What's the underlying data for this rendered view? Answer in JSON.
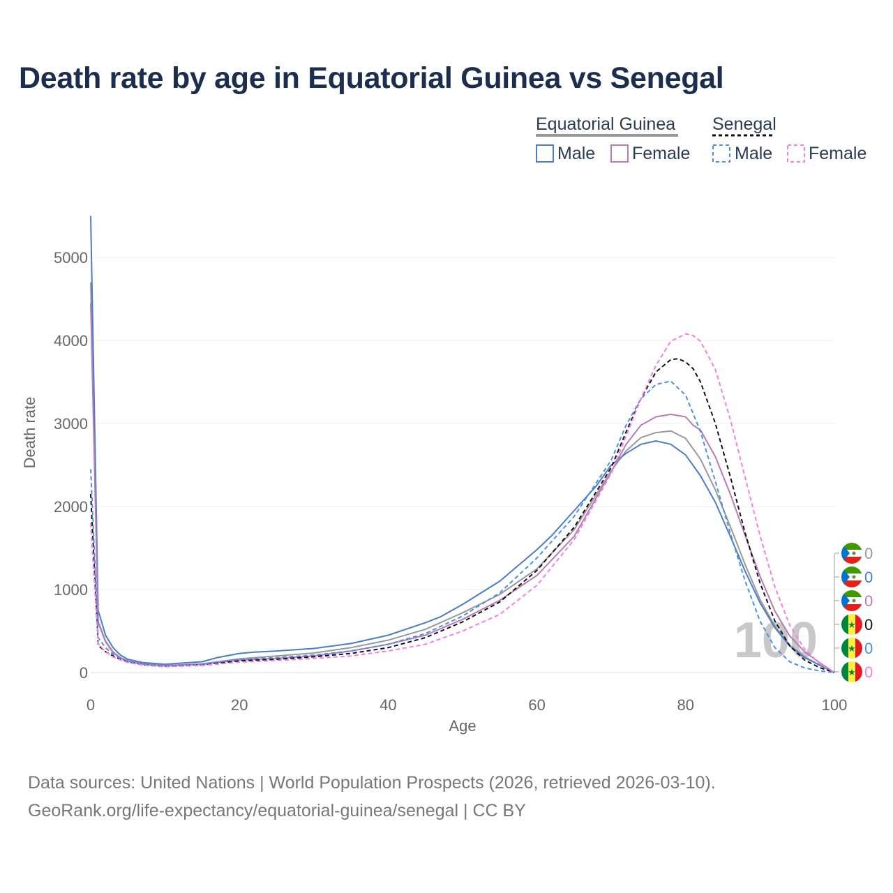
{
  "title": "Death rate by age in Equatorial Guinea vs Senegal",
  "sources": {
    "line1": "Data sources: United Nations | World Population Prospects (2026, retrieved 2026-03-10).",
    "line2": "GeoRank.org/life-expectancy/equatorial-guinea/senegal | CC BY"
  },
  "legend": {
    "groups": [
      {
        "country": "Equatorial Guinea",
        "male": "Male",
        "female": "Female"
      },
      {
        "country": "Senegal",
        "male": "Male",
        "female": "Female"
      }
    ]
  },
  "watermark_age": "100",
  "end_labels": [
    {
      "flag": "equatorial-guinea",
      "value": "0",
      "color": "#999999"
    },
    {
      "flag": "equatorial-guinea",
      "value": "0",
      "color": "#4a7cc9"
    },
    {
      "flag": "equatorial-guinea",
      "value": "0",
      "color": "#b77bb8"
    },
    {
      "flag": "senegal",
      "value": "0",
      "color": "#111111"
    },
    {
      "flag": "senegal",
      "value": "0",
      "color": "#4a90e2"
    },
    {
      "flag": "senegal",
      "value": "0",
      "color": "#f47fe0"
    }
  ],
  "chart_data": {
    "type": "line",
    "title": "Death rate by age in Equatorial Guinea vs Senegal",
    "xlabel": "Age",
    "ylabel": "Death rate",
    "xlim": [
      0,
      100
    ],
    "ylim": [
      0,
      5000
    ],
    "x_ticks": [
      0,
      20,
      40,
      60,
      80,
      100
    ],
    "y_ticks": [
      0,
      1000,
      2000,
      3000,
      4000,
      5000
    ],
    "series": [
      {
        "name": "Equatorial Guinea (total)",
        "color": "#999999",
        "dash": "solid",
        "x": [
          0,
          1,
          2,
          3,
          4,
          5,
          7,
          10,
          15,
          20,
          25,
          30,
          35,
          40,
          45,
          50,
          55,
          60,
          65,
          70,
          72,
          74,
          76,
          78,
          80,
          82,
          84,
          86,
          88,
          90,
          92,
          94,
          96,
          98,
          100
        ],
        "y": [
          4700,
          620,
          380,
          250,
          180,
          140,
          105,
          85,
          105,
          165,
          200,
          235,
          300,
          390,
          520,
          720,
          940,
          1250,
          1720,
          2430,
          2670,
          2830,
          2890,
          2910,
          2820,
          2570,
          2200,
          1760,
          1300,
          880,
          560,
          330,
          190,
          90,
          0
        ]
      },
      {
        "name": "Equatorial Guinea Male",
        "color": "#4a7cc9",
        "dash": "solid",
        "x": [
          0,
          1,
          2,
          3,
          4,
          5,
          7,
          10,
          15,
          17,
          20,
          22,
          25,
          30,
          35,
          40,
          45,
          47,
          50,
          55,
          60,
          62,
          65,
          68,
          70,
          72,
          74,
          76,
          78,
          80,
          82,
          84,
          86,
          88,
          90,
          92,
          94,
          96,
          98,
          100
        ],
        "y": [
          5500,
          750,
          450,
          300,
          210,
          160,
          120,
          100,
          130,
          180,
          230,
          245,
          260,
          290,
          350,
          450,
          600,
          670,
          820,
          1100,
          1480,
          1650,
          1950,
          2250,
          2500,
          2640,
          2750,
          2790,
          2750,
          2620,
          2370,
          2050,
          1640,
          1220,
          840,
          540,
          320,
          180,
          90,
          0
        ]
      },
      {
        "name": "Equatorial Guinea Female",
        "color": "#b77bb8",
        "dash": "solid",
        "x": [
          0,
          1,
          2,
          3,
          4,
          5,
          7,
          10,
          15,
          20,
          25,
          30,
          35,
          40,
          45,
          50,
          55,
          60,
          65,
          70,
          72,
          74,
          76,
          78,
          80,
          81,
          82,
          84,
          86,
          88,
          90,
          92,
          94,
          96,
          98,
          100
        ],
        "y": [
          4450,
          600,
          370,
          240,
          175,
          135,
          100,
          85,
          100,
          150,
          170,
          200,
          260,
          340,
          450,
          640,
          870,
          1170,
          1640,
          2420,
          2750,
          2980,
          3080,
          3110,
          3080,
          2980,
          2920,
          2600,
          2150,
          1650,
          1160,
          740,
          440,
          250,
          120,
          0
        ]
      },
      {
        "name": "Senegal (total)",
        "color": "#111111",
        "dash": "dashed",
        "x": [
          0,
          1,
          2,
          3,
          4,
          5,
          7,
          10,
          15,
          20,
          25,
          30,
          35,
          40,
          45,
          50,
          55,
          60,
          65,
          70,
          72,
          74,
          76,
          78,
          79,
          80,
          81,
          82,
          84,
          86,
          88,
          90,
          92,
          94,
          96,
          98,
          100
        ],
        "y": [
          2150,
          330,
          250,
          200,
          160,
          130,
          95,
          75,
          95,
          140,
          160,
          190,
          230,
          300,
          420,
          610,
          850,
          1230,
          1750,
          2470,
          2900,
          3300,
          3620,
          3770,
          3780,
          3740,
          3660,
          3500,
          3000,
          2360,
          1680,
          1080,
          620,
          320,
          150,
          60,
          0
        ]
      },
      {
        "name": "Senegal Male",
        "color": "#4a90e2",
        "dash": "dashed",
        "x": [
          0,
          1,
          2,
          3,
          4,
          5,
          7,
          10,
          15,
          20,
          25,
          30,
          35,
          40,
          45,
          50,
          55,
          60,
          65,
          70,
          72,
          74,
          76,
          78,
          80,
          82,
          84,
          86,
          88,
          90,
          92,
          94,
          96,
          98,
          100
        ],
        "y": [
          2450,
          420,
          300,
          220,
          170,
          135,
          100,
          80,
          100,
          160,
          180,
          210,
          260,
          340,
          470,
          680,
          960,
          1380,
          1880,
          2560,
          2980,
          3300,
          3470,
          3510,
          3340,
          2900,
          2300,
          1680,
          1100,
          620,
          300,
          130,
          55,
          20,
          0
        ]
      },
      {
        "name": "Senegal Female",
        "color": "#f47fe0",
        "dash": "dashed",
        "x": [
          0,
          1,
          2,
          3,
          4,
          5,
          7,
          10,
          15,
          20,
          25,
          30,
          35,
          40,
          45,
          50,
          55,
          60,
          65,
          70,
          72,
          74,
          76,
          78,
          80,
          81,
          82,
          84,
          86,
          88,
          90,
          92,
          94,
          96,
          98,
          100
        ],
        "y": [
          1800,
          350,
          250,
          190,
          150,
          120,
          90,
          70,
          85,
          125,
          145,
          170,
          200,
          260,
          340,
          500,
          700,
          1050,
          1600,
          2400,
          2850,
          3300,
          3700,
          3990,
          4080,
          4060,
          3990,
          3650,
          3050,
          2350,
          1650,
          1030,
          570,
          280,
          110,
          0
        ]
      }
    ]
  }
}
